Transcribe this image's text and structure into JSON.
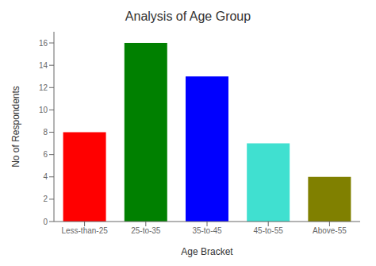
{
  "chart_data": {
    "type": "bar",
    "title": "Analysis of Age Group",
    "xlabel": "Age Bracket",
    "ylabel": "No of Respondents",
    "categories": [
      "Less-than-25",
      "25-to-35",
      "35-to-45",
      "45-to-55",
      "Above-55"
    ],
    "values": [
      8,
      16,
      13,
      7,
      4
    ],
    "colors": [
      "#ff0000",
      "#008000",
      "#0000ff",
      "#40e0d0",
      "#808000"
    ],
    "ylim": [
      0,
      17
    ],
    "yticks": [
      0,
      2,
      4,
      6,
      8,
      10,
      12,
      14,
      16
    ],
    "grid": false
  }
}
